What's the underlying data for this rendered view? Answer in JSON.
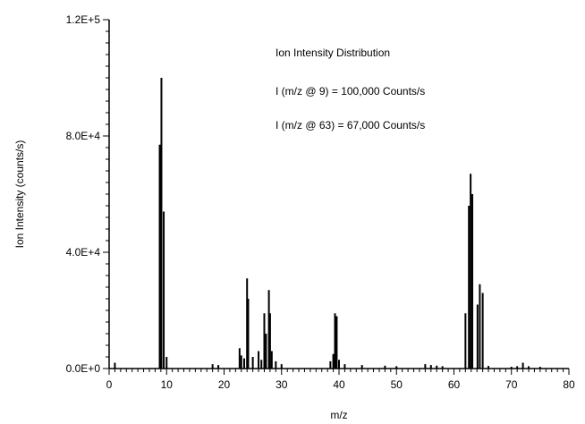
{
  "chart_data": {
    "type": "bar",
    "xlabel": "m/z",
    "ylabel": "Ion Intensity (counts/s)",
    "xlim": [
      0,
      80
    ],
    "ylim": [
      0,
      120000
    ],
    "x_ticks": [
      0,
      10,
      20,
      30,
      40,
      50,
      60,
      70,
      80
    ],
    "x_tick_labels": [
      "0",
      "10",
      "20",
      "30",
      "40",
      "50",
      "60",
      "70",
      "80"
    ],
    "y_ticks": [
      0,
      40000,
      80000,
      120000
    ],
    "y_tick_labels": [
      "0.0E+0",
      "4.0E+4",
      "8.0E+4",
      "1.2E+5"
    ],
    "annotations": [
      "Ion Intensity Distribution",
      "I (m/z @ 9) = 100,000 Counts/s",
      "I (m/z @ 63) = 67,000 Counts/s"
    ],
    "bar_color": "#000000",
    "series": [
      {
        "x": [
          1,
          8.8,
          9.1,
          9.5,
          10,
          18,
          19,
          22.7,
          23,
          23.5,
          24,
          24.2,
          25,
          26,
          26.5,
          27,
          27.3,
          27.8,
          28,
          28.3,
          29,
          30,
          38.5,
          39,
          39.3,
          39.6,
          40,
          41,
          44,
          48,
          50,
          55,
          56,
          57,
          58,
          62,
          62.6,
          62.9,
          63.2,
          64.1,
          64.5,
          65,
          66,
          70,
          71,
          72,
          73,
          75
        ],
        "y": [
          2000,
          77000,
          100000,
          54000,
          4000,
          1500,
          1200,
          7000,
          4500,
          3500,
          31000,
          24000,
          4000,
          6000,
          3000,
          19000,
          12000,
          27000,
          19000,
          6000,
          2500,
          1500,
          2500,
          5000,
          19000,
          18000,
          3000,
          1500,
          1200,
          1000,
          800,
          1500,
          1200,
          1000,
          800,
          19000,
          56000,
          67000,
          60000,
          22000,
          29000,
          26000,
          900,
          600,
          800,
          2000,
          800,
          600
        ]
      }
    ]
  }
}
